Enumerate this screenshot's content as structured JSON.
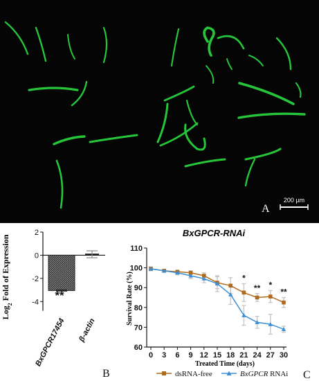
{
  "panel_a": {
    "letter": "A",
    "scale_bar_label": "200 µm",
    "background": "#050505",
    "worm_color": "#27c63a"
  },
  "panel_b": {
    "letter": "B",
    "bar_fill": "#3a3a3a",
    "significance": "**"
  },
  "panel_c": {
    "letter": "C",
    "dsrna_color": "#b06a1e",
    "rnai_color": "#3b8fd6",
    "error_color": "#c4c4c4"
  },
  "chart_data": [
    {
      "type": "bar",
      "title": "",
      "ylabel": "Log2 Fold of Expression",
      "categories": [
        "BxGPCR17454",
        "β-actin"
      ],
      "values": [
        -3.05,
        0.08
      ],
      "errors": [
        0.05,
        0.3
      ],
      "ylim": [
        -5,
        2
      ],
      "yticks": [
        -4,
        -2,
        0,
        2
      ],
      "annotations": [
        {
          "category": "BxGPCR17454",
          "text": "**"
        }
      ]
    },
    {
      "type": "line",
      "title": "BxGPCR-RNAi",
      "xlabel": "Treated Time (days)",
      "ylabel": "Survival Rate (%)",
      "x": [
        0,
        3,
        6,
        9,
        12,
        15,
        18,
        21,
        24,
        27,
        30
      ],
      "xlim": [
        0,
        30
      ],
      "ylim": [
        60,
        110
      ],
      "yticks": [
        60,
        70,
        80,
        90,
        100,
        110
      ],
      "legend_position": "bottom",
      "series": [
        {
          "name": "dsRNA-free",
          "marker": "square",
          "values": [
            99.5,
            98.5,
            98,
            97.5,
            96,
            92.5,
            91,
            87.5,
            85,
            85.5,
            82.5
          ],
          "errors": [
            1,
            0.5,
            0.8,
            1,
            1.5,
            3,
            4,
            4.5,
            2,
            3,
            2.5
          ]
        },
        {
          "name": "BxGPCR RNAi",
          "marker": "triangle",
          "values": [
            99.5,
            98.5,
            97.5,
            96,
            94.5,
            92,
            86.5,
            76,
            72.5,
            71.5,
            69
          ],
          "errors": [
            1,
            0.5,
            1,
            1.5,
            2,
            4,
            5,
            5,
            3,
            5,
            1.5
          ]
        }
      ],
      "significance": [
        {
          "x": 21,
          "text": "*"
        },
        {
          "x": 24,
          "text": "**"
        },
        {
          "x": 27,
          "text": "*"
        },
        {
          "x": 30,
          "text": "**"
        }
      ]
    }
  ]
}
